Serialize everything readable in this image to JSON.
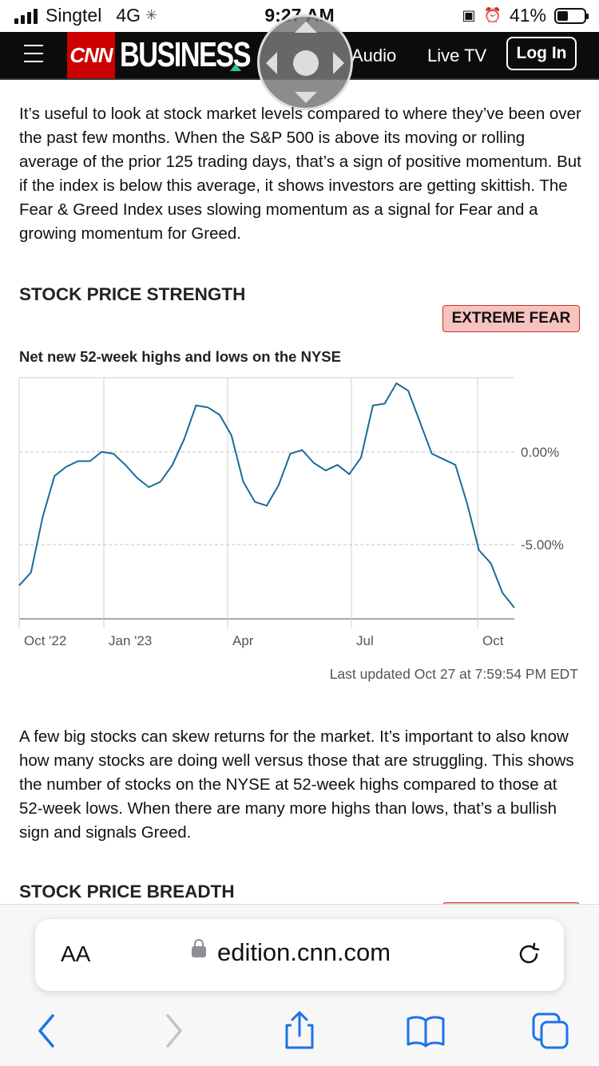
{
  "status_bar": {
    "carrier": "Singtel",
    "network": "4G",
    "time": "9:27 AM",
    "battery": "41%",
    "battery_level": 0.41
  },
  "nav": {
    "logo": "CNN",
    "section": "BUSINESS",
    "items": [
      "Audio",
      "Live TV"
    ],
    "login": "Log In"
  },
  "intro_text": "It’s useful to look at stock market levels compared to where they’ve been over the past few months. When the S&P 500 is above its moving or rolling average of the prior 125 trading days, that’s a sign of positive momentum. But if the index is below this average, it shows investors are getting skittish. The Fear & Greed Index uses slowing momentum as a signal for Fear and a growing momentum for Greed.",
  "section1": {
    "heading": "STOCK PRICE STRENGTH",
    "badge": "EXTREME FEAR",
    "badge_color": "#f8c3bf"
  },
  "chart_data": {
    "type": "line",
    "title": "Net new 52-week highs and lows on the NYSE",
    "x_tick_labels": [
      "Oct '22",
      "Jan '23",
      "Apr",
      "Jul",
      "Oct"
    ],
    "y_tick_labels": [
      "0.00%",
      "-5.00%"
    ],
    "y_ticks": [
      0,
      -5
    ],
    "ylim": [
      -9,
      4
    ],
    "line_color": "#1a6b97",
    "series": [
      {
        "values": [
          -7.2,
          -6.5,
          -3.5,
          -1.3,
          -0.8,
          -0.5,
          -0.5,
          0.0,
          -0.1,
          -0.7,
          -1.4,
          -1.9,
          -1.6,
          -0.7,
          0.7,
          2.5,
          2.4,
          2.0,
          0.9,
          -1.6,
          -2.7,
          -2.9,
          -1.8,
          -0.1,
          0.1,
          -0.6,
          -1.0,
          -0.7,
          -1.2,
          -0.3,
          2.5,
          2.6,
          3.7,
          3.3,
          1.6,
          -0.1,
          -0.4,
          -0.7,
          -2.8,
          -5.3,
          -6.0,
          -7.6,
          -8.4
        ]
      }
    ],
    "last_updated": "Last updated Oct 27 at 7:59:54 PM EDT"
  },
  "body_text": "A few big stocks can skew returns for the market. It’s important to also know how many stocks are doing well versus those that are struggling. This shows the number of stocks on the NYSE at 52-week highs compared to those at 52-week lows. When there are many more highs than lows, that’s a bullish sign and signals Greed.",
  "section2": {
    "heading": "STOCK PRICE BREADTH"
  },
  "safari": {
    "text_size_button": "AA",
    "url": "edition.cnn.com",
    "icons": [
      "back-icon",
      "forward-icon",
      "share-icon",
      "bookmarks-icon",
      "tabs-icon"
    ],
    "accent": "#1a73e8"
  }
}
